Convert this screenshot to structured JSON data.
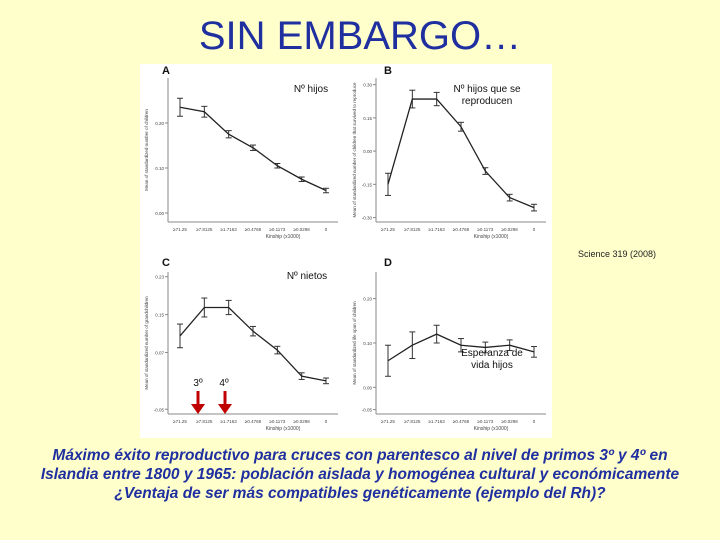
{
  "slide": {
    "title": "SIN EMBARGO…",
    "credit": "Science 319 (2008)",
    "caption_line1": "Máximo éxito reproductivo para cruces con parentesco al nivel de primos 3º y 4º en",
    "caption_line2": "Islandia entre 1800 y 1965: población aislada y homogénea cultural y económicamente",
    "caption_line3": "¿Ventaja de ser más compatibles genéticamente (ejemplo del Rh)?",
    "annotations": {
      "a": "Nº hijos",
      "b_line1": "Nº hijos que se",
      "b_line2": "reproducen",
      "c": "Nº nietos",
      "d_line1": "Esperanza de",
      "d_line2": "vida hijos",
      "cousin3": "3º",
      "cousin4": "4º"
    },
    "colors": {
      "background": "#ffffcc",
      "title": "#1f2fa0",
      "caption": "#1f2fa0",
      "arrows": "#c00000"
    }
  },
  "chart_data": [
    {
      "panel": "A",
      "type": "line",
      "ylabel": "Mean of standardized number of children",
      "xlabel": "Kinship (x1000)",
      "categories": [
        "≥71.25",
        "≥7.8125",
        "≥1.7163",
        "≥0.4768",
        "≥0.1173",
        "≥0.0298",
        "0"
      ],
      "ylim": [
        -0.02,
        0.3
      ],
      "yticks": [
        0.0,
        0.1,
        0.2
      ],
      "values": [
        0.235,
        0.225,
        0.175,
        0.145,
        0.105,
        0.075,
        0.05
      ],
      "errors": [
        0.02,
        0.012,
        0.008,
        0.006,
        0.005,
        0.005,
        0.005
      ]
    },
    {
      "panel": "B",
      "type": "line",
      "ylabel": "Mean of standardized number of children that survived to reproduce",
      "xlabel": "Kinship (x1000)",
      "categories": [
        "≥71.25",
        "≥7.8125",
        "≥1.7163",
        "≥0.4768",
        "≥0.1173",
        "≥0.0298",
        "0"
      ],
      "ylim": [
        -0.32,
        0.33
      ],
      "yticks": [
        -0.3,
        -0.15,
        0.0,
        0.15,
        0.3
      ],
      "values": [
        -0.15,
        0.235,
        0.235,
        0.11,
        -0.09,
        -0.21,
        -0.255
      ],
      "errors": [
        0.05,
        0.04,
        0.03,
        0.02,
        0.015,
        0.015,
        0.015
      ]
    },
    {
      "panel": "C",
      "type": "line",
      "ylabel": "Mean of standardized number of grandchildren",
      "xlabel": "Kinship (x1000)",
      "categories": [
        "≥71.25",
        "≥7.8125",
        "≥1.7163",
        "≥0.4768",
        "≥0.1173",
        "≥0.0298",
        "0"
      ],
      "ylim": [
        -0.06,
        0.24
      ],
      "yticks": [
        -0.05,
        0.07,
        0.15,
        0.23
      ],
      "values": [
        0.105,
        0.165,
        0.165,
        0.115,
        0.075,
        0.02,
        0.01
      ],
      "errors": [
        0.025,
        0.02,
        0.015,
        0.01,
        0.008,
        0.007,
        0.006
      ]
    },
    {
      "panel": "D",
      "type": "line",
      "ylabel": "Mean of standardized life span of children",
      "xlabel": "Kinship (x1000)",
      "categories": [
        "≥71.25",
        "≥7.8125",
        "≥1.7163",
        "≥0.4768",
        "≥0.1173",
        "≥0.0298",
        "0"
      ],
      "ylim": [
        -0.06,
        0.26
      ],
      "yticks": [
        -0.05,
        0.0,
        0.1,
        0.2
      ],
      "values": [
        0.06,
        0.095,
        0.12,
        0.095,
        0.09,
        0.095,
        0.08
      ],
      "errors": [
        0.035,
        0.03,
        0.02,
        0.015,
        0.012,
        0.012,
        0.012
      ]
    }
  ]
}
